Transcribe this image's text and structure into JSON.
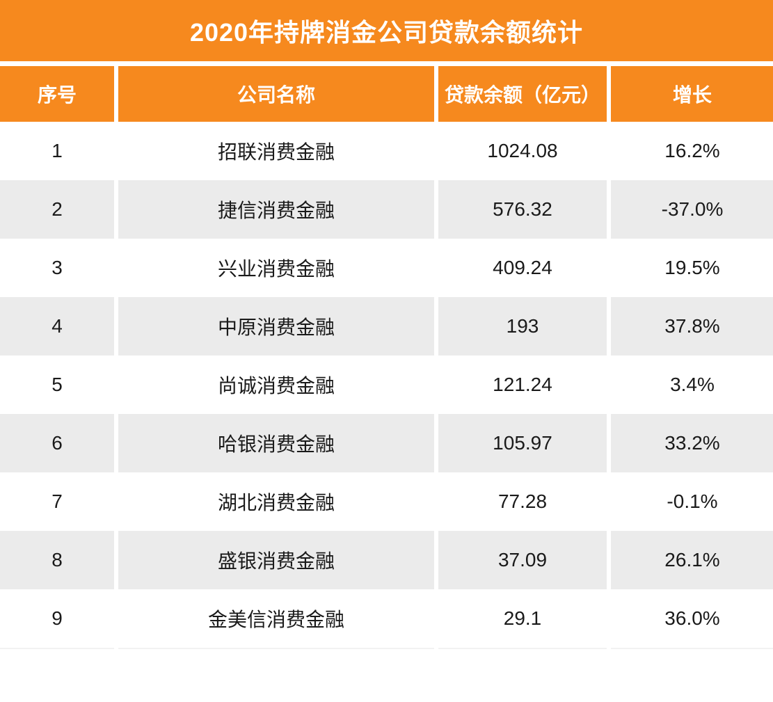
{
  "title": "2020年持牌消金公司贷款余额统计",
  "colors": {
    "accent_orange": "#F6891E",
    "row_alt_gray": "#EBEBEB",
    "text_dark": "#1A1A1A",
    "header_text": "#FFFFFF",
    "footer_divider": "#F2F2F2"
  },
  "table": {
    "columns": [
      {
        "label": "序号"
      },
      {
        "label": "公司名称"
      },
      {
        "label": "贷款余额（亿元）"
      },
      {
        "label": "增长"
      }
    ],
    "rows": [
      {
        "no": "1",
        "company": "招联消费金融",
        "balance": "1024.08",
        "growth": "16.2%"
      },
      {
        "no": "2",
        "company": "捷信消费金融",
        "balance": "576.32",
        "growth": "-37.0%"
      },
      {
        "no": "3",
        "company": "兴业消费金融",
        "balance": "409.24",
        "growth": "19.5%"
      },
      {
        "no": "4",
        "company": "中原消费金融",
        "balance": "193",
        "growth": "37.8%"
      },
      {
        "no": "5",
        "company": "尚诚消费金融",
        "balance": "121.24",
        "growth": "3.4%"
      },
      {
        "no": "6",
        "company": "哈银消费金融",
        "balance": "105.97",
        "growth": "33.2%"
      },
      {
        "no": "7",
        "company": "湖北消费金融",
        "balance": "77.28",
        "growth": "-0.1%"
      },
      {
        "no": "8",
        "company": "盛银消费金融",
        "balance": "37.09",
        "growth": "26.1%"
      },
      {
        "no": "9",
        "company": "金美信消费金融",
        "balance": "29.1",
        "growth": "36.0%"
      }
    ]
  },
  "chart_data": {
    "type": "table",
    "title": "2020年持牌消金公司贷款余额统计",
    "columns": [
      "序号",
      "公司名称",
      "贷款余额（亿元）",
      "增长"
    ],
    "rows": [
      [
        1,
        "招联消费金融",
        1024.08,
        "16.2%"
      ],
      [
        2,
        "捷信消费金融",
        576.32,
        "-37.0%"
      ],
      [
        3,
        "兴业消费金融",
        409.24,
        "19.5%"
      ],
      [
        4,
        "中原消费金融",
        193,
        "37.8%"
      ],
      [
        5,
        "尚诚消费金融",
        121.24,
        "3.4%"
      ],
      [
        6,
        "哈银消费金融",
        105.97,
        "33.2%"
      ],
      [
        7,
        "湖北消费金融",
        77.28,
        "-0.1%"
      ],
      [
        8,
        "盛银消费金融",
        37.09,
        "26.1%"
      ],
      [
        9,
        "金美信消费金融",
        29.1,
        "36.0%"
      ]
    ]
  }
}
